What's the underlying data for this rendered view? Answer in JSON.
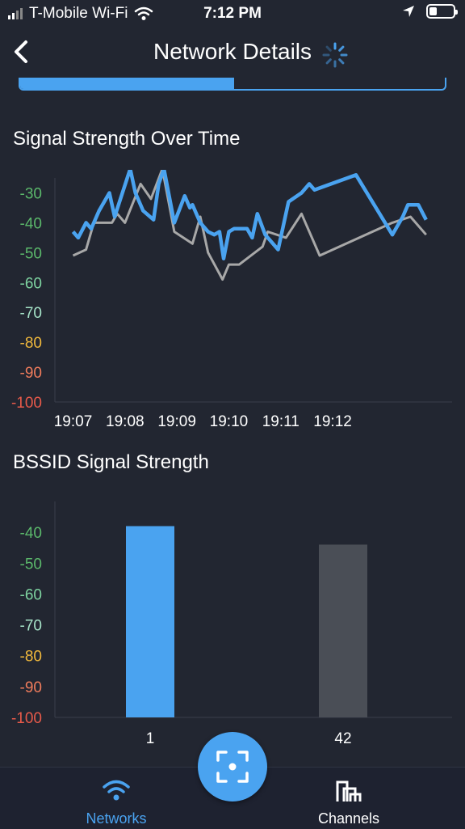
{
  "status_bar": {
    "carrier": "T-Mobile Wi-Fi",
    "time": "7:12 PM"
  },
  "nav": {
    "title": "Network Details"
  },
  "signal_chart": {
    "title": "Signal Strength Over Time"
  },
  "bssid_chart": {
    "title": "BSSID Signal Strength"
  },
  "tabs": {
    "networks_label": "Networks",
    "channels_label": "Channels"
  },
  "colors": {
    "accent": "#4aa3f0",
    "background": "#222631",
    "gray_series": "#a8a8a8",
    "bar_gray": "#4a4e56"
  },
  "chart_data": [
    {
      "type": "line",
      "title": "Signal Strength Over Time",
      "ylim": [
        -100,
        -25
      ],
      "y_ticks": [
        -30,
        -40,
        -50,
        -60,
        -70,
        -80,
        -90,
        -100
      ],
      "y_tick_colors": {
        "-30": "#5bb86b",
        "-40": "#5bb86b",
        "-50": "#5bb86b",
        "-60": "#7ed3a0",
        "-70": "#a6e3c8",
        "-80": "#f0b83c",
        "-90": "#f07c5c",
        "-100": "#e85a4a"
      },
      "x_ticks": [
        "19:07",
        "19:08",
        "19:09",
        "19:10",
        "19:11",
        "19:12"
      ],
      "series": [
        {
          "color": "#4aa3f0",
          "points": [
            [
              19.0,
              -43
            ],
            [
              19.1,
              -45
            ],
            [
              19.25,
              -40
            ],
            [
              19.35,
              -42
            ],
            [
              19.5,
              -36
            ],
            [
              19.7,
              -30
            ],
            [
              19.8,
              -38
            ],
            [
              20.1,
              -22
            ],
            [
              20.2,
              -30
            ],
            [
              20.35,
              -36
            ],
            [
              20.55,
              -39
            ],
            [
              20.65,
              -27
            ],
            [
              20.75,
              -22
            ],
            [
              20.95,
              -40
            ],
            [
              21.15,
              -31
            ],
            [
              21.25,
              -35
            ],
            [
              21.3,
              -34
            ],
            [
              21.45,
              -40
            ],
            [
              21.6,
              -43
            ],
            [
              21.72,
              -44
            ],
            [
              21.82,
              -43
            ],
            [
              21.9,
              -52
            ],
            [
              22.0,
              -43
            ],
            [
              22.1,
              -42
            ],
            [
              22.35,
              -42
            ],
            [
              22.45,
              -45
            ],
            [
              22.55,
              -37
            ],
            [
              22.7,
              -44
            ],
            [
              22.95,
              -49
            ],
            [
              23.15,
              -33
            ],
            [
              23.4,
              -30
            ],
            [
              23.55,
              -27
            ],
            [
              23.65,
              -29
            ],
            [
              24.45,
              -24
            ],
            [
              25.15,
              -44
            ],
            [
              25.35,
              -38
            ],
            [
              25.45,
              -34
            ],
            [
              25.65,
              -34
            ],
            [
              25.8,
              -39
            ]
          ]
        },
        {
          "color": "#a8a8a8",
          "points": [
            [
              19.0,
              -51
            ],
            [
              19.25,
              -49
            ],
            [
              19.4,
              -40
            ],
            [
              19.6,
              -40
            ],
            [
              19.75,
              -40
            ],
            [
              19.85,
              -37
            ],
            [
              20.0,
              -40
            ],
            [
              20.3,
              -27
            ],
            [
              20.5,
              -32
            ],
            [
              20.72,
              -22
            ],
            [
              20.95,
              -43
            ],
            [
              21.3,
              -47
            ],
            [
              21.45,
              -38
            ],
            [
              21.6,
              -50
            ],
            [
              21.88,
              -59
            ],
            [
              22.0,
              -54
            ],
            [
              22.2,
              -54
            ],
            [
              22.65,
              -48
            ],
            [
              22.75,
              -43
            ],
            [
              23.1,
              -45
            ],
            [
              23.4,
              -37
            ],
            [
              23.75,
              -51
            ],
            [
              25.15,
              -40
            ],
            [
              25.5,
              -38
            ],
            [
              25.8,
              -44
            ]
          ]
        }
      ]
    },
    {
      "type": "bar",
      "title": "BSSID Signal Strength",
      "ylim": [
        -100,
        -30
      ],
      "y_ticks": [
        -40,
        -50,
        -60,
        -70,
        -80,
        -90,
        -100
      ],
      "categories": [
        "1",
        "42"
      ],
      "values": [
        -38,
        -44
      ],
      "bar_colors": [
        "#4aa3f0",
        "#4a4e56"
      ]
    }
  ]
}
